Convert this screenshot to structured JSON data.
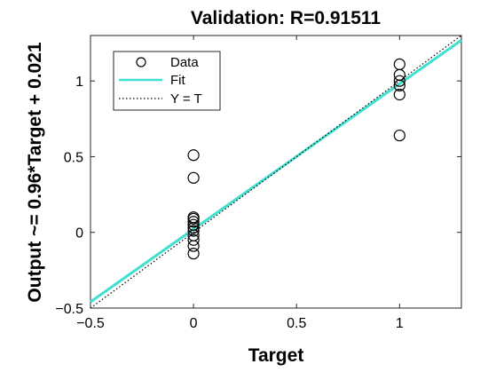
{
  "chart_data": {
    "type": "scatter",
    "title": "Validation: R=0.91511",
    "xlabel": "Target",
    "ylabel": "Output ~= 0.96*Target + 0.021",
    "xlim": [
      -0.5,
      1.3
    ],
    "ylim": [
      -0.5,
      1.3
    ],
    "xticks": [
      -0.5,
      0,
      0.5,
      1
    ],
    "yticks": [
      -0.5,
      0,
      0.5,
      1
    ],
    "xtick_labels": [
      "−0.5",
      "0",
      "0.5",
      "1"
    ],
    "ytick_labels": [
      "−0.5",
      "0",
      "0.5",
      "1"
    ],
    "grid": false,
    "legend_position": "top-left",
    "series": [
      {
        "name": "Data",
        "kind": "markers",
        "marker": "circle-open",
        "color": "#000000",
        "points": [
          {
            "x": 0,
            "y": 0.51
          },
          {
            "x": 0,
            "y": 0.36
          },
          {
            "x": 0,
            "y": 0.1
          },
          {
            "x": 0,
            "y": 0.09
          },
          {
            "x": 0,
            "y": 0.07
          },
          {
            "x": 0,
            "y": 0.05
          },
          {
            "x": 0,
            "y": 0.03
          },
          {
            "x": 0,
            "y": 0.01
          },
          {
            "x": 0,
            "y": -0.02
          },
          {
            "x": 0,
            "y": -0.05
          },
          {
            "x": 0,
            "y": -0.09
          },
          {
            "x": 0,
            "y": -0.14
          },
          {
            "x": 1,
            "y": 1.11
          },
          {
            "x": 1,
            "y": 1.04
          },
          {
            "x": 1,
            "y": 1.0
          },
          {
            "x": 1,
            "y": 0.97
          },
          {
            "x": 1,
            "y": 0.91
          },
          {
            "x": 1,
            "y": 0.64
          }
        ]
      },
      {
        "name": "Fit",
        "kind": "line",
        "color": "#3fe0d0",
        "slope": 0.96,
        "intercept": 0.021
      },
      {
        "name": "Y = T",
        "kind": "line",
        "style": "dotted",
        "color": "#000000",
        "slope": 1,
        "intercept": 0
      }
    ]
  }
}
